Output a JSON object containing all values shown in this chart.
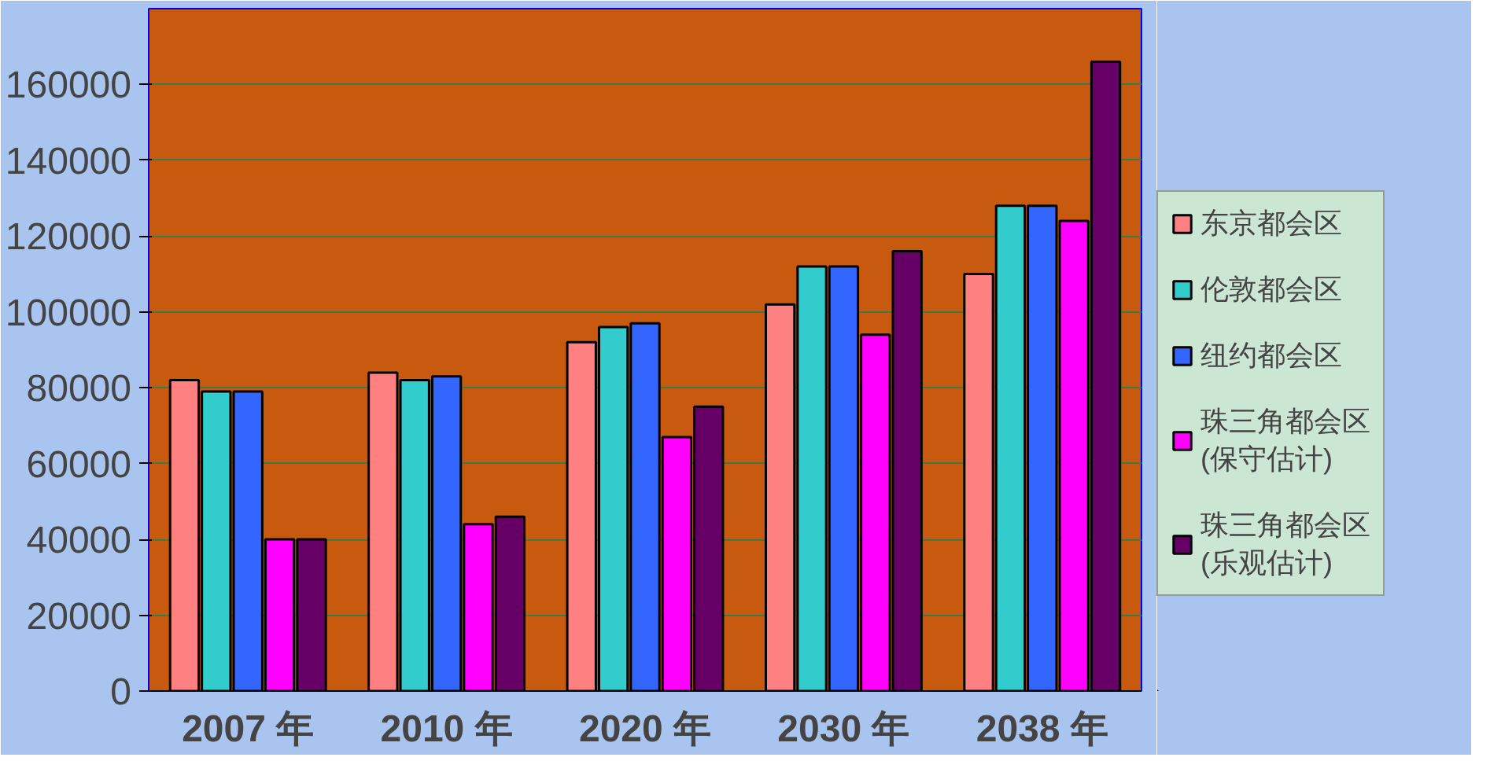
{
  "chart_data": {
    "type": "bar",
    "categories": [
      "2007 年",
      "2010 年",
      "2020 年",
      "2030 年",
      "2038 年"
    ],
    "series": [
      {
        "name": "东京都会区",
        "color": "#ff8080",
        "values": [
          82000,
          84000,
          92000,
          102000,
          110000
        ]
      },
      {
        "name": "伦敦都会区",
        "color": "#33cccc",
        "values": [
          79000,
          82000,
          96000,
          112000,
          128000
        ]
      },
      {
        "name": "纽约都会区",
        "color": "#3366ff",
        "values": [
          79000,
          83000,
          97000,
          112000,
          128000
        ]
      },
      {
        "name": "珠三角都会区\n(保守估计)",
        "color": "#ff00ff",
        "values": [
          40000,
          44000,
          67000,
          94000,
          124000
        ]
      },
      {
        "name": "珠三角都会区\n(乐观估计)",
        "color": "#660066",
        "values": [
          40000,
          46000,
          75000,
          116000,
          166000
        ]
      }
    ],
    "ylim": [
      0,
      180000
    ],
    "yticks": [
      0,
      20000,
      40000,
      60000,
      80000,
      100000,
      120000,
      140000,
      160000
    ],
    "grid": "y",
    "legend": "right"
  }
}
